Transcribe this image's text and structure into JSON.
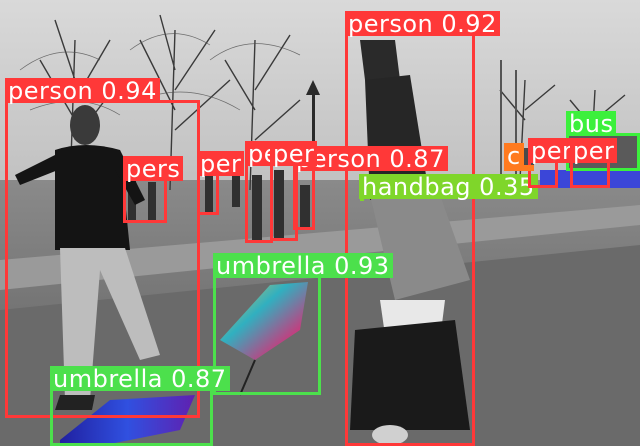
{
  "colors": {
    "person": "#ff3838",
    "umbrella": "#4ce04c",
    "handbag": "#7fd62a",
    "bus": "#3cf03c",
    "car": "#ff7a1f",
    "text": "#ffffff"
  },
  "detections": [
    {
      "label": "person 0.94",
      "class": "person"
    },
    {
      "label": "person 0.92",
      "class": "person"
    },
    {
      "label": "person 0.87",
      "class": "person"
    },
    {
      "label": "pers",
      "class": "person"
    },
    {
      "label": "per",
      "class": "person"
    },
    {
      "label": "per",
      "class": "person"
    },
    {
      "label": "per",
      "class": "person"
    },
    {
      "label": "umbrella 0.93",
      "class": "umbrella"
    },
    {
      "label": "umbrella 0.87",
      "class": "umbrella"
    },
    {
      "label": "handbag 0.35",
      "class": "handbag"
    },
    {
      "label": "bus",
      "class": "bus"
    },
    {
      "label": "per",
      "class": "person"
    },
    {
      "label": "per",
      "class": "person"
    },
    {
      "label": "c",
      "class": "car"
    }
  ]
}
